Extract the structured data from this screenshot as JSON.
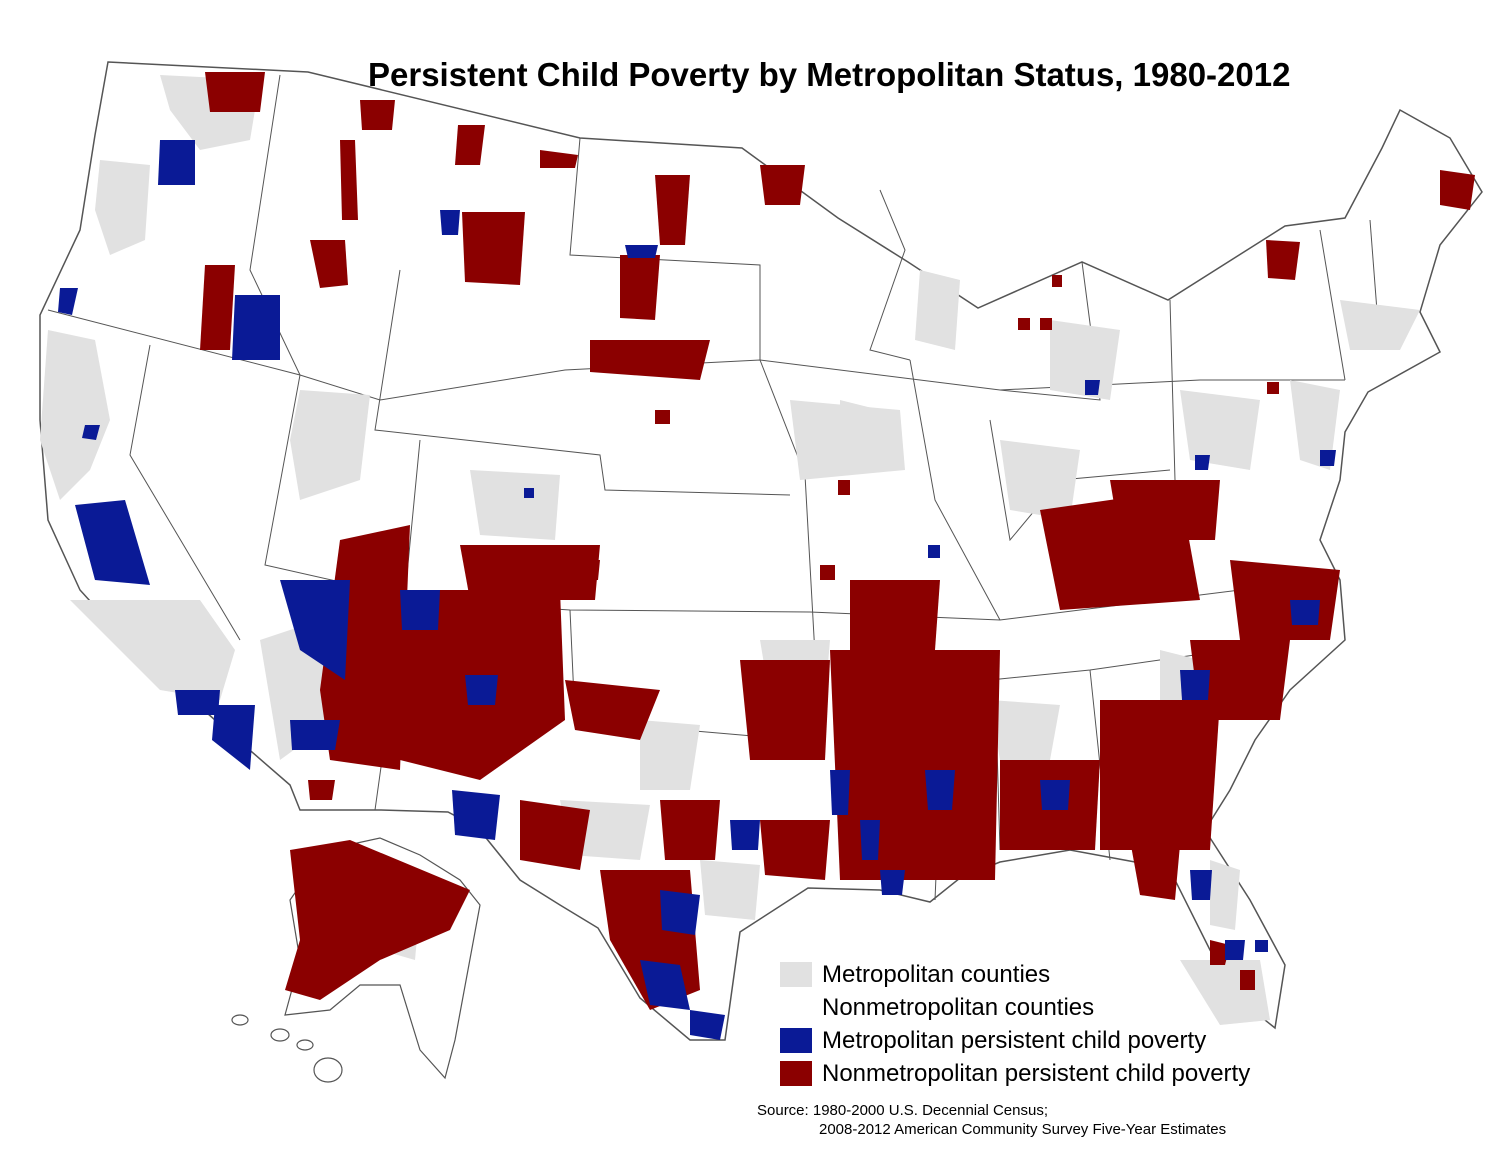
{
  "title": "Persistent Child Poverty by Metropolitan Status, 1980-2012",
  "colors": {
    "metro": "#e1e1e1",
    "nonmetro": "#ffffff",
    "metro_poverty": "#0a1a96",
    "nonmetro_poverty": "#8b0000",
    "borders": "#555555"
  },
  "legend": [
    {
      "label": "Metropolitan counties",
      "color": "#e1e1e1"
    },
    {
      "label": "Nonmetropolitan counties",
      "color": "#ffffff"
    },
    {
      "label": "Metropolitan persistent child poverty",
      "color": "#0a1a96"
    },
    {
      "label": "Nonmetropolitan persistent child poverty",
      "color": "#8b0000"
    }
  ],
  "source": {
    "line1": "Source: 1980-2000 U.S. Decennial Census;",
    "line2": "2008-2012 American Community Survey Five-Year Estimates"
  }
}
